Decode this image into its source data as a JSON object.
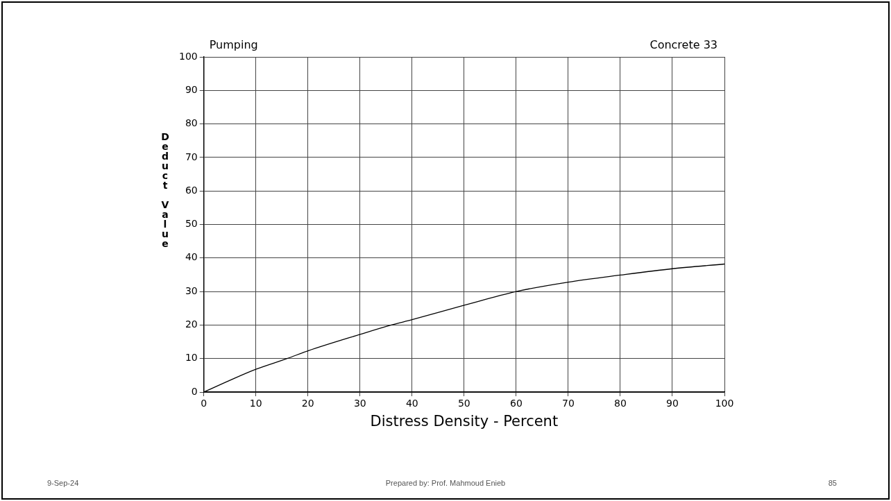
{
  "chart_data": {
    "type": "line",
    "title": "Pumping",
    "subtitle": "Concrete 33",
    "xlabel": "Distress Density - Percent",
    "ylabel": "Deduct Value",
    "annotations": [
      "9-Sep-24",
      "Prepared by: Prof. Mahmoud Enieb",
      "85"
    ],
    "x": [
      0,
      5,
      10,
      16,
      20,
      30,
      36,
      40,
      50,
      60,
      70,
      80,
      90,
      100
    ],
    "series": [
      {
        "color": "#000000",
        "values": [
          0,
          3.5,
          6.8,
          10,
          12.3,
          17.2,
          20,
          21.6,
          25.9,
          30,
          32.8,
          34.9,
          36.8,
          38.2
        ]
      }
    ],
    "xlim": [
      0,
      100
    ],
    "xticks": [
      0,
      10,
      20,
      30,
      40,
      50,
      60,
      70,
      80,
      90,
      100
    ],
    "ylim": [
      0,
      100
    ],
    "yticks": [
      0,
      10,
      20,
      30,
      40,
      50,
      60,
      70,
      80,
      90,
      100
    ],
    "grid": true,
    "legend": false,
    "marker": "none",
    "line_style": "solid"
  }
}
